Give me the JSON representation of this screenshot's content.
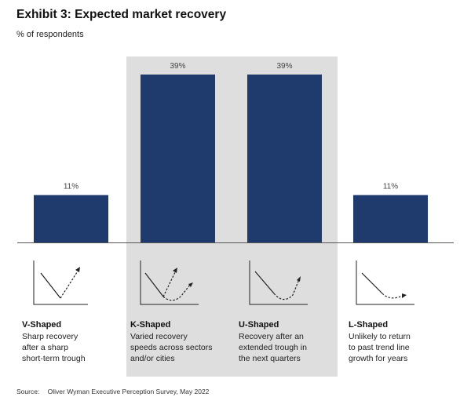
{
  "title": "Exhibit 3: Expected market recovery",
  "subtitle": "% of respondents",
  "colors": {
    "bar": "#1f3a6d",
    "highlight": "#dedede",
    "baseline": "#555555"
  },
  "chart_data": {
    "type": "bar",
    "title": "Exhibit 3: Expected market recovery",
    "ylabel": "% of respondents",
    "categories": [
      "V-Shaped",
      "K-Shaped",
      "U-Shaped",
      "L-Shaped"
    ],
    "values": [
      11,
      39,
      39,
      11
    ],
    "value_labels": [
      "11%",
      "39%",
      "39%",
      "11%"
    ],
    "ylim": [
      0,
      39
    ],
    "grid": false,
    "highlighted_categories": [
      "K-Shaped",
      "U-Shaped"
    ]
  },
  "shapes": [
    {
      "name": "V-Shaped",
      "desc": [
        "Sharp recovery",
        "after a sharp",
        "short-term trough"
      ],
      "icon": "v-recovery-icon"
    },
    {
      "name": "K-Shaped",
      "desc": [
        "Varied recovery",
        "speeds across sectors",
        "and/or cities"
      ],
      "icon": "k-recovery-icon"
    },
    {
      "name": "U-Shaped",
      "desc": [
        "Recovery after an",
        "extended trough in",
        "the next quarters"
      ],
      "icon": "u-recovery-icon"
    },
    {
      "name": "L-Shaped",
      "desc": [
        "Unlikely to return",
        "to past trend line",
        "growth for years"
      ],
      "icon": "l-recovery-icon"
    }
  ],
  "source": {
    "label": "Source:",
    "text": "Oliver Wyman Executive Perception Survey, May 2022"
  }
}
